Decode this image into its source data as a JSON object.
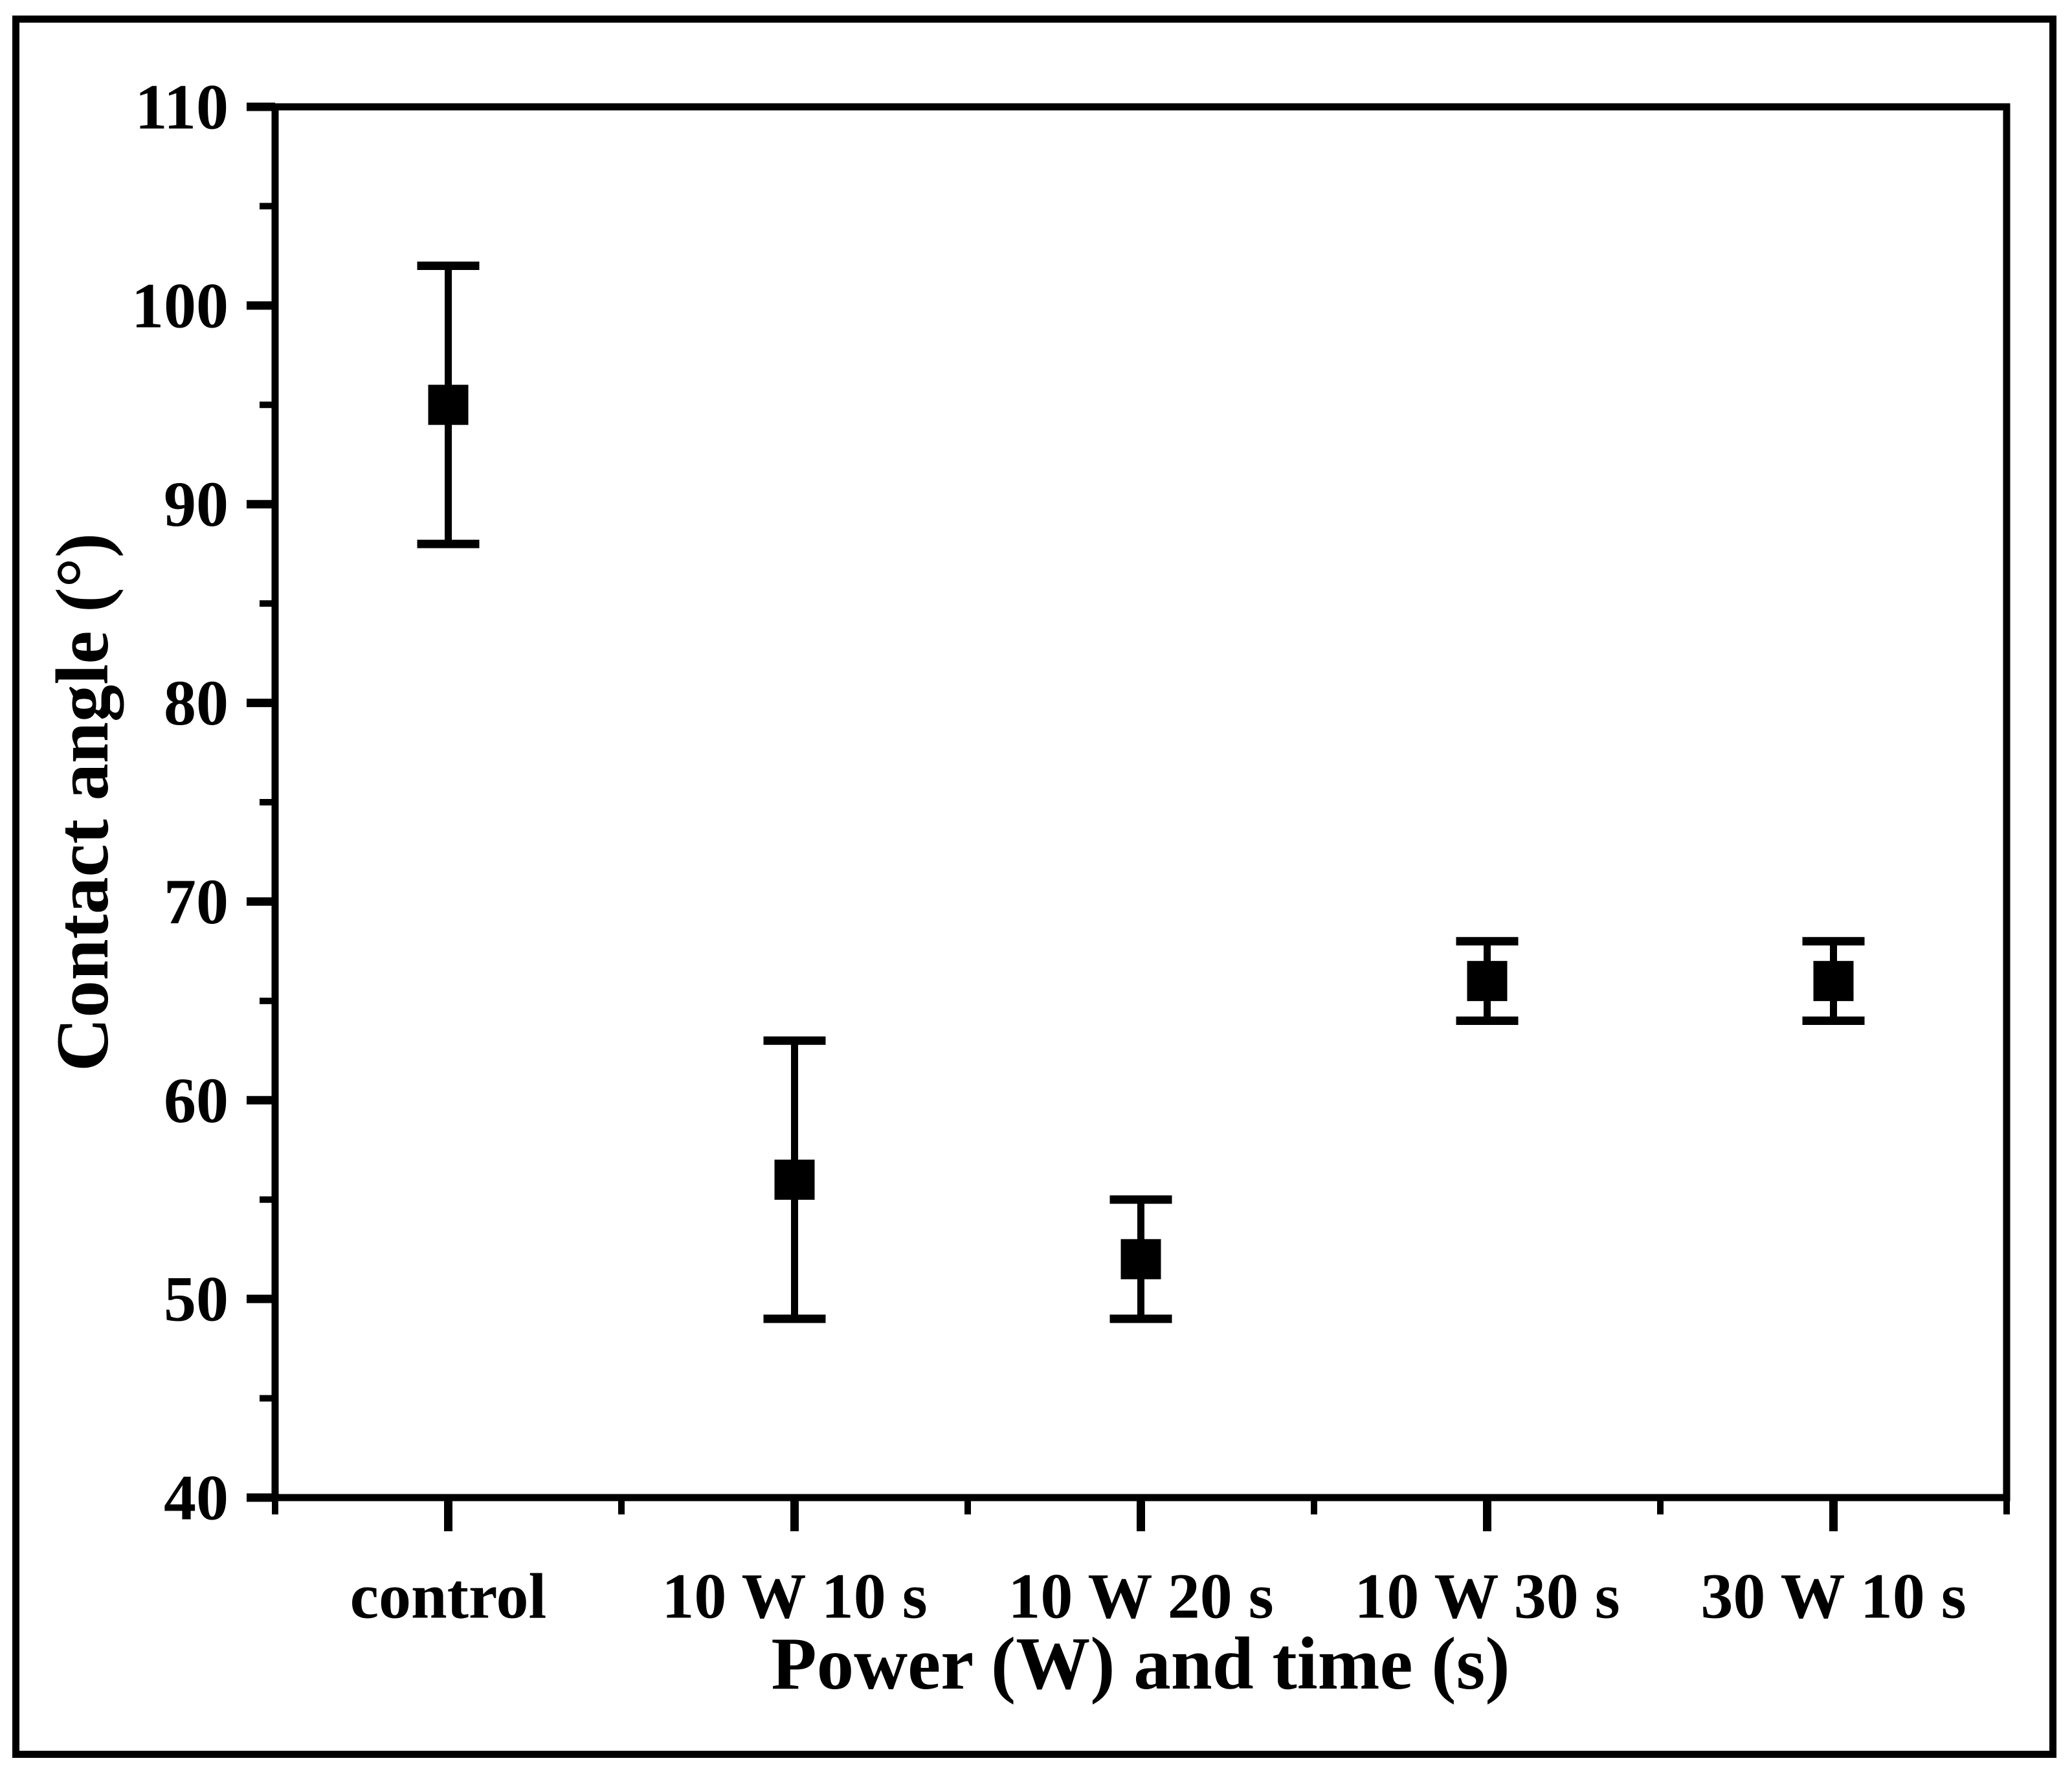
{
  "figure": {
    "background": "#ffffff",
    "border_color": "#000000",
    "ink_color": "#000000"
  },
  "chart_data": {
    "type": "scatter",
    "categories": [
      "control",
      "10 W 10 s",
      "10 W 20 s",
      "10 W 30 s",
      "30 W 10 s"
    ],
    "values": [
      95,
      56,
      52,
      66,
      66
    ],
    "error_plus": [
      7,
      7,
      3,
      2,
      2
    ],
    "error_minus": [
      7,
      7,
      3,
      2,
      2
    ],
    "series_name": "Contact angle",
    "title": "",
    "xlabel": "Power (W) and time (s)",
    "ylabel": "Contact angle (°)",
    "ylim": [
      40,
      110
    ],
    "y_major_step": 10,
    "y_minor_step": 5,
    "y_tick_labels": [
      "40",
      "50",
      "60",
      "70",
      "80",
      "90",
      "100",
      "110"
    ],
    "x_minor_between_categories": true,
    "marker": "square",
    "marker_color": "#000000",
    "error_bar_color": "#000000",
    "grid": false,
    "legend": null
  }
}
